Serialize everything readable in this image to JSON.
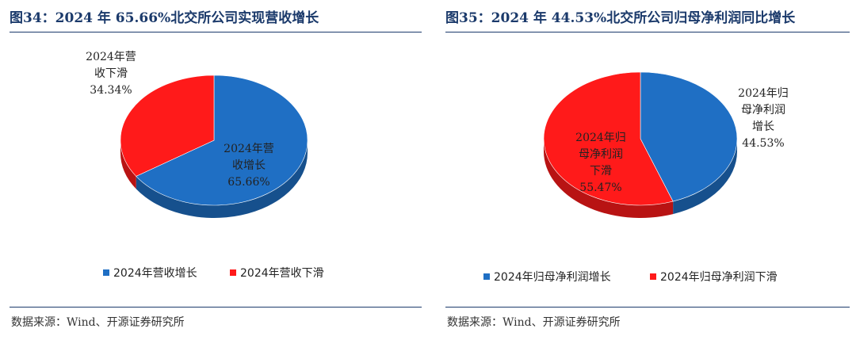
{
  "left": {
    "title": "图34：2024 年 65.66%北交所公司实现营收增长",
    "source": "数据来源：Wind、开源证券研究所"
  },
  "right": {
    "title": "图35：2024 年 44.53%北交所公司归母净利润同比增长",
    "source": "数据来源：Wind、开源证券研究所"
  },
  "chart_data": [
    {
      "type": "pie",
      "categories": [
        "2024年营收增长",
        "2024年营收下滑"
      ],
      "values": [
        65.66,
        34.34
      ],
      "value_labels": [
        "65.66%",
        "34.34%"
      ],
      "slice_labels": [
        [
          "2024年营",
          "收增长",
          "65.66%"
        ],
        [
          "2024年营",
          "收下滑",
          "34.34%"
        ]
      ],
      "colors": [
        "#1f6fc4",
        "#ff1a1a"
      ],
      "legend": [
        "2024年营收增长",
        "2024年营收下滑"
      ],
      "legend_position": "bottom"
    },
    {
      "type": "pie",
      "categories": [
        "2024年归母净利润增长",
        "2024年归母净利润下滑"
      ],
      "values": [
        44.53,
        55.47
      ],
      "value_labels": [
        "44.53%",
        "55.47%"
      ],
      "slice_labels": [
        [
          "2024年归",
          "母净利润",
          "增长",
          "44.53%"
        ],
        [
          "2024年归",
          "母净利润",
          "下滑",
          "55.47%"
        ]
      ],
      "colors": [
        "#1f6fc4",
        "#ff1a1a"
      ],
      "legend": [
        "2024年归母净利润增长",
        "2024年归母净利润下滑"
      ],
      "legend_position": "bottom"
    }
  ]
}
